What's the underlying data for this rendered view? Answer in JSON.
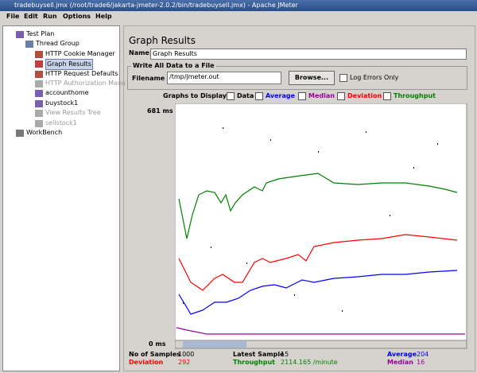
{
  "window": {
    "title": "tradebuysell.jmx (/root/trade6/jakarta-jmeter-2.0.2/bin/tradebuysell.jmx) - Apache JMeter"
  },
  "menu": [
    "File",
    "Edit",
    "Run",
    "Options",
    "Help"
  ],
  "tree": {
    "nodes": [
      {
        "label": "Test Plan"
      },
      {
        "label": "Thread Group"
      },
      {
        "label": "HTTP Cookie Manager"
      },
      {
        "label": "Graph Results"
      },
      {
        "label": "HTTP Request Defaults"
      },
      {
        "label": "HTTP Authorization Mana"
      },
      {
        "label": "accounthome"
      },
      {
        "label": "buystock1"
      },
      {
        "label": "View Results Tree"
      },
      {
        "label": "sellstock1"
      },
      {
        "label": "WorkBench"
      }
    ]
  },
  "panel": {
    "title": "Graph Results",
    "name_label": "Name:",
    "name_value": "Graph Results",
    "file_group": "Write All Data to a File",
    "filename_label": "Filename",
    "filename_value": "/tmp/jmeter.out",
    "browse": "Browse...",
    "log_errors": "Log Errors Only",
    "graphs_label": "Graphs to Display",
    "graphs": [
      {
        "name": "Data",
        "color": "#000000"
      },
      {
        "name": "Average",
        "color": "#0000ff"
      },
      {
        "name": "Median",
        "color": "#9b009b"
      },
      {
        "name": "Deviation",
        "color": "#ff0000"
      },
      {
        "name": "Throughput",
        "color": "#008000"
      }
    ],
    "y_max": "681 ms",
    "y_min": "0 ms"
  },
  "stats": {
    "samples_label": "No of Samples",
    "samples": 1000,
    "latest_label": "Latest Sample",
    "latest": 15,
    "average_label": "Average",
    "average": 204,
    "deviation_label": "Deviation",
    "deviation": 292,
    "throughput_label": "Throughput",
    "throughput": "2114.165 /minute",
    "median_label": "Median",
    "median": 16
  }
}
